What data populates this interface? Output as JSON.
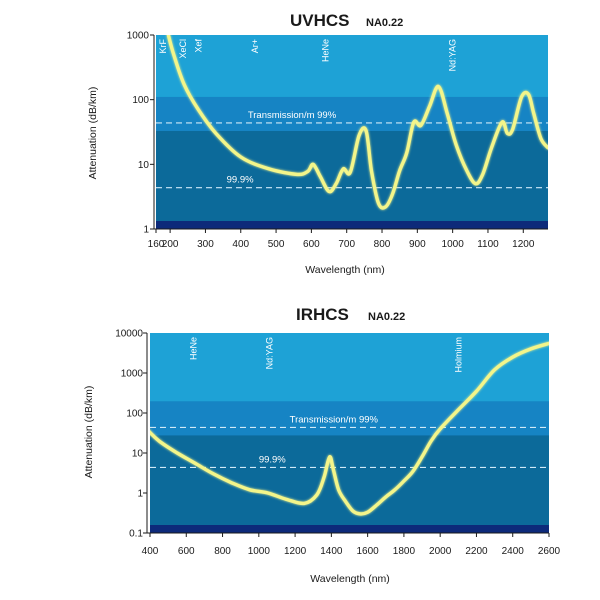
{
  "chart_data": [
    {
      "type": "line",
      "title": "UVHCS",
      "subtitle": "NA0.22",
      "xlabel": "Wavelength (nm)",
      "ylabel": "Attenuation (dB/km)",
      "xlim": [
        160,
        1270
      ],
      "ylim": [
        1,
        1000
      ],
      "yscale": "log",
      "xticks": [
        160,
        200,
        300,
        400,
        500,
        600,
        700,
        800,
        900,
        1000,
        1100,
        1200
      ],
      "yticks": [
        1,
        10,
        100,
        1000
      ],
      "ytick_labels": [
        "1",
        "10",
        "100",
        "1000"
      ],
      "laser_lines": [
        {
          "label": "KrF",
          "x": 180
        },
        {
          "label": "XeCl",
          "x": 237
        },
        {
          "label": "Xef",
          "x": 280
        },
        {
          "label": "Ar+",
          "x": 440
        },
        {
          "label": "HeNe",
          "x": 640
        },
        {
          "label": "Nd:YAG",
          "x": 1000
        }
      ],
      "transmission_lines": [
        {
          "label": "Transmission/m 99%",
          "y": 43.6,
          "label_x": 420
        },
        {
          "label": "99.9%",
          "y": 4.36,
          "label_x": 360
        }
      ],
      "series": [
        {
          "name": "Attenuation",
          "x": [
            195,
            210,
            240,
            280,
            330,
            400,
            480,
            560,
            590,
            605,
            625,
            650,
            670,
            690,
            710,
            735,
            755,
            770,
            790,
            810,
            830,
            850,
            870,
            890,
            910,
            935,
            960,
            985,
            1010,
            1040,
            1065,
            1085,
            1110,
            1140,
            1155,
            1170,
            1195,
            1215,
            1230,
            1250,
            1270
          ],
          "y": [
            1000,
            500,
            170,
            70,
            30,
            13,
            8.5,
            7,
            7.8,
            10,
            6.5,
            3.8,
            5,
            8.5,
            7.5,
            28,
            33,
            8,
            2.5,
            2.2,
            3.5,
            8,
            15,
            45,
            40,
            80,
            160,
            60,
            20,
            8,
            5,
            7,
            18,
            45,
            30,
            35,
            110,
            120,
            60,
            25,
            18
          ]
        }
      ]
    },
    {
      "type": "line",
      "title": "IRHCS",
      "subtitle": "NA0.22",
      "xlabel": "Wavelength (nm)",
      "ylabel": "Attenuation (dB/km)",
      "xlim": [
        400,
        2600
      ],
      "ylim": [
        0.1,
        10000
      ],
      "yscale": "log",
      "xticks": [
        400,
        600,
        800,
        1000,
        1200,
        1400,
        1600,
        1800,
        2000,
        2200,
        2400,
        2600
      ],
      "yticks": [
        0.1,
        1,
        10,
        100,
        1000,
        10000
      ],
      "ytick_labels": [
        "0.1",
        "1",
        "10",
        "100",
        "1000",
        "10000"
      ],
      "laser_lines": [
        {
          "label": "HeNe",
          "x": 640
        },
        {
          "label": "Nd:YAG",
          "x": 1060
        },
        {
          "label": "Holmium",
          "x": 2100
        }
      ],
      "transmission_lines": [
        {
          "label": "Transmission/m 99%",
          "y": 43.6,
          "label_x": 1170
        },
        {
          "label": "99.9%",
          "y": 4.36,
          "label_x": 1000
        }
      ],
      "series": [
        {
          "name": "Attenuation",
          "x": [
            380,
            450,
            550,
            650,
            750,
            850,
            950,
            1050,
            1150,
            1250,
            1320,
            1360,
            1390,
            1410,
            1440,
            1480,
            1520,
            1560,
            1600,
            1650,
            1700,
            1750,
            1800,
            1850,
            1900,
            1950,
            2000,
            2100,
            2200,
            2300,
            2400,
            2500,
            2600
          ],
          "y": [
            40,
            20,
            10,
            5.5,
            3,
            1.8,
            1.2,
            1,
            0.7,
            0.55,
            0.9,
            2.5,
            8,
            4,
            1.2,
            0.6,
            0.35,
            0.3,
            0.33,
            0.5,
            0.8,
            1.2,
            2,
            3.5,
            8,
            20,
            40,
            120,
            350,
            1200,
            2500,
            4000,
            5500
          ]
        }
      ]
    }
  ]
}
